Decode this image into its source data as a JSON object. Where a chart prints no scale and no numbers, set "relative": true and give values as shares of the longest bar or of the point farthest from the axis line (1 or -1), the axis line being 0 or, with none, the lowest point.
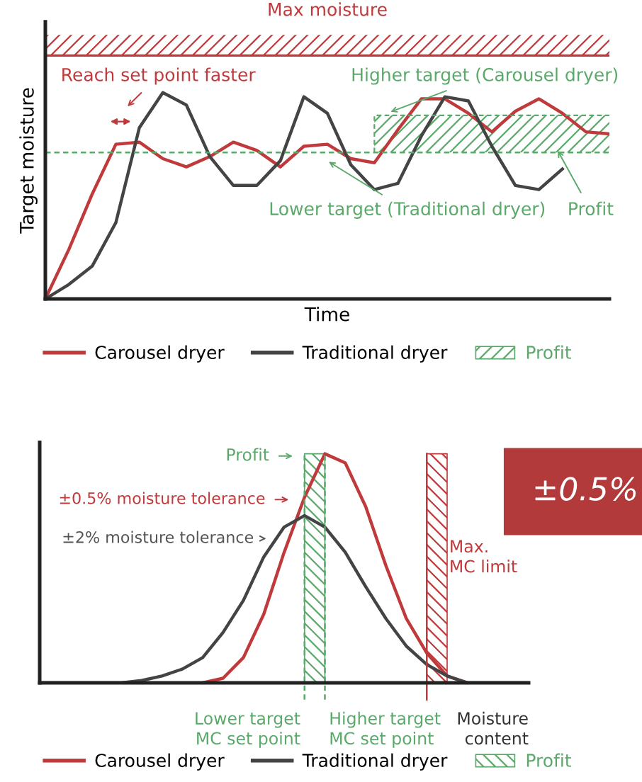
{
  "chart_data": [
    {
      "type": "line",
      "relative": true,
      "xlabel": "Time",
      "ylabel": "Target moisture",
      "legend": "bottom",
      "tick_labels": false,
      "categories": [
        null,
        null,
        null,
        null,
        null,
        null,
        null,
        null,
        null,
        null,
        null,
        null,
        null,
        null,
        null,
        null,
        null,
        null,
        null,
        null,
        null,
        null,
        null,
        null,
        null
      ],
      "series": [
        {
          "name": "Carousel dryer",
          "color": "#c0393b",
          "values": [
            0,
            0.24,
            0.51,
            0.75,
            0.76,
            0.68,
            0.64,
            0.69,
            0.76,
            0.72,
            0.64,
            0.74,
            0.75,
            0.68,
            0.66,
            0.82,
            0.97,
            0.97,
            0.9,
            0.81,
            0.91,
            0.97,
            0.9,
            0.81,
            0.8
          ]
        },
        {
          "name": "Traditional dryer",
          "color": "#444444",
          "values": [
            0,
            0.07,
            0.16,
            0.37,
            0.83,
            1.0,
            0.94,
            0.69,
            0.55,
            0.55,
            0.67,
            0.98,
            0.9,
            0.65,
            0.53,
            0.56,
            0.79,
            0.98,
            0.96,
            0.74,
            0.55,
            0.53,
            0.63,
            null,
            null
          ]
        }
      ],
      "ref_lines": [
        {
          "axis": "y",
          "value": 1.18,
          "label": "Max moisture",
          "color": "#c0393b",
          "line_style": "solid"
        },
        {
          "axis": "y",
          "value": 0.71,
          "color": "#5aa96a",
          "line_style": "dashed"
        }
      ],
      "bands": [
        {
          "axis": "y",
          "from": 1.18,
          "to": 1.28,
          "color": "#c0393b"
        },
        {
          "axis": "y",
          "from": 0.71,
          "to": 0.89,
          "color": "#5aa96a",
          "label": "Profit"
        }
      ],
      "annotations": [
        "Reach set point faster",
        "Higher target (Carousel dryer)",
        "Lower target (Traditional dryer)",
        "Profit"
      ]
    },
    {
      "type": "line",
      "relative": true,
      "xlabel": "Moisture content",
      "legend": "bottom",
      "tick_labels": false,
      "categories": [
        null,
        null,
        null,
        null,
        null,
        null,
        null,
        null,
        null,
        null,
        null,
        null,
        null,
        null,
        null,
        null,
        null,
        null,
        null,
        null,
        null,
        null,
        null,
        null,
        null
      ],
      "series": [
        {
          "name": "Carousel dryer",
          "color": "#c0393b",
          "values": [
            null,
            null,
            null,
            null,
            null,
            null,
            null,
            null,
            0,
            0.02,
            0.11,
            0.3,
            0.57,
            0.81,
            1.0,
            0.96,
            0.77,
            0.51,
            0.28,
            0.13,
            0.03,
            0,
            null,
            null,
            null
          ]
        },
        {
          "name": "Traditional dryer",
          "color": "#444444",
          "values": [
            0,
            0,
            0,
            0,
            0,
            0.01,
            0.03,
            0.06,
            0.11,
            0.22,
            0.36,
            0.55,
            0.68,
            0.73,
            0.68,
            0.57,
            0.42,
            0.28,
            0.16,
            0.08,
            0.03,
            0,
            0,
            0,
            0
          ]
        },
        {
          "name": "Profit",
          "type": "area",
          "color": "#5aa96a",
          "line_style": "dashed",
          "values": [
            null,
            null,
            null,
            null,
            null,
            null,
            null,
            null,
            null,
            null,
            null,
            null,
            null,
            1.0,
            1.0,
            null,
            null,
            null,
            null,
            null,
            null,
            null,
            null,
            null,
            null
          ]
        },
        {
          "name": "Max.\nMC limit",
          "type": "area",
          "color": "#c0393b",
          "line_style": "solid",
          "values": [
            null,
            null,
            null,
            null,
            null,
            null,
            null,
            null,
            null,
            null,
            null,
            null,
            null,
            null,
            null,
            null,
            null,
            null,
            null,
            1.0,
            1.0,
            null,
            null,
            null,
            null
          ]
        }
      ],
      "annotations": [
        "Profit",
        "±0.5% moisture tolerance",
        "±2% moisture tolerance",
        "±0.5%",
        "Lower target\nMC set point",
        "Higher target\nMC set point"
      ]
    }
  ]
}
